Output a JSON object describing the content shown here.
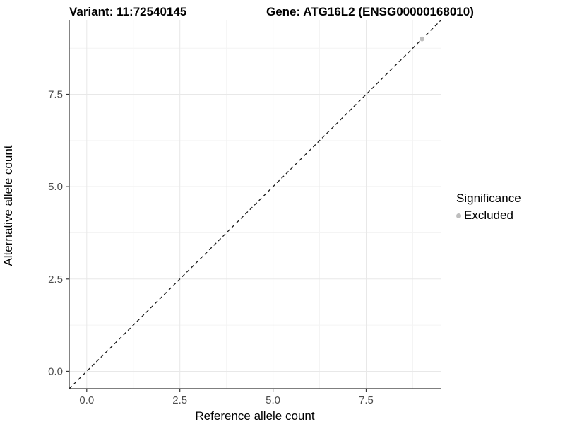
{
  "header": {
    "variant_title": "Variant: 11:72540145",
    "gene_title": "Gene: ATG16L2 (ENSG00000168010)"
  },
  "axes": {
    "x_label": "Reference allele count",
    "y_label": "Alternative allele count"
  },
  "legend": {
    "title": "Significance",
    "items": [
      {
        "label": "Excluded",
        "color": "#bebebe"
      }
    ]
  },
  "colors": {
    "background": "#ffffff",
    "grid_major": "#e8e8e8",
    "grid_minor": "#f4f4f4",
    "axis_line": "#333333",
    "tick_label": "#4d4d4d",
    "reference_line": "#1a1a1a",
    "excluded_point": "#bebebe"
  },
  "chart_data": {
    "type": "scatter",
    "title": "Variant: 11:72540145   Gene: ATG16L2 (ENSG00000168010)",
    "xlabel": "Reference allele count",
    "ylabel": "Alternative allele count",
    "xlim": [
      -0.47,
      9.5
    ],
    "ylim": [
      -0.47,
      9.5
    ],
    "x_ticks": [
      0.0,
      2.5,
      5.0,
      7.5
    ],
    "y_ticks": [
      0.0,
      2.5,
      5.0,
      7.5
    ],
    "x_minor_ticks": [
      1.25,
      3.75,
      6.25,
      8.75
    ],
    "y_minor_ticks": [
      1.25,
      3.75,
      6.25,
      8.75
    ],
    "grid": "major+minor",
    "legend_position": "right",
    "legend_title": "Significance",
    "series": [
      {
        "name": "Excluded",
        "color": "#bebebe",
        "marker": "circle",
        "points": [
          [
            9,
            9
          ]
        ]
      }
    ],
    "reference_line": {
      "kind": "identity",
      "slope": 1,
      "intercept": 0,
      "style": "dashed",
      "color": "#1a1a1a"
    }
  }
}
